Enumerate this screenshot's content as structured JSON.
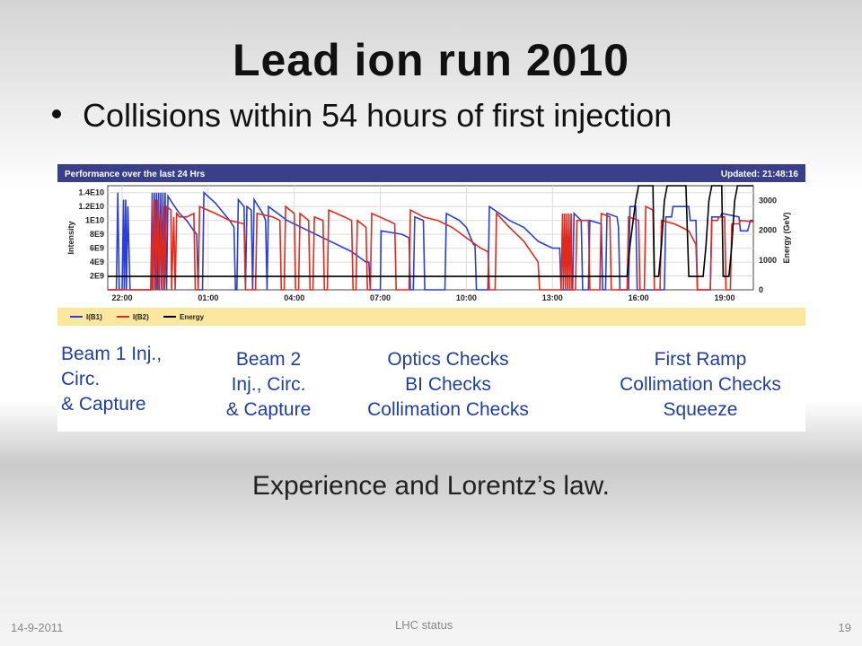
{
  "slide": {
    "title": "Lead ion run 2010",
    "bullet": "Collisions within 54 hours of first injection",
    "subtitle": "Experience and Lorentz’s law.",
    "footer_date": "14-9-2011",
    "footer_center": "LHC status",
    "page_number": "19"
  },
  "chart_data": {
    "type": "line",
    "title": "Performance over the last 24 Hrs",
    "updated": "Updated: 21:48:16",
    "ylabel": "Intensity",
    "y2label": "Energy (GeV)",
    "yticks": [
      "1.4E10",
      "1.2E10",
      "1E10",
      "8E9",
      "6E9",
      "4E9",
      "2E9"
    ],
    "y2ticks": [
      "3000",
      "2000",
      "1000",
      "0"
    ],
    "xticks": [
      "22:00",
      "01:00",
      "04:00",
      "07:00",
      "10:00",
      "13:00",
      "16:00",
      "19:00"
    ],
    "ylim": [
      0,
      15000000000
    ],
    "y2lim": [
      0,
      3500
    ],
    "series": [
      {
        "name": "I(B1)",
        "color": "#2b3fd6",
        "values": [
          [
            0,
            0
          ],
          [
            0.6,
            0
          ],
          [
            0.7,
            14000000000.0
          ],
          [
            0.8,
            0
          ],
          [
            1.0,
            0
          ],
          [
            1.1,
            13000000000.0
          ],
          [
            1.15,
            0
          ],
          [
            1.25,
            13000000000.0
          ],
          [
            1.3,
            0
          ],
          [
            1.4,
            12000000000.0
          ],
          [
            1.55,
            0
          ],
          [
            3.0,
            0
          ],
          [
            3.1,
            14000000000.0
          ],
          [
            3.15,
            0
          ],
          [
            3.25,
            14000000000.0
          ],
          [
            3.3,
            0
          ],
          [
            3.4,
            14000000000.0
          ],
          [
            3.45,
            0
          ],
          [
            3.55,
            14000000000.0
          ],
          [
            3.6,
            0
          ],
          [
            3.7,
            14000000000.0
          ],
          [
            3.75,
            0
          ],
          [
            3.85,
            14000000000.0
          ],
          [
            3.9,
            0
          ],
          [
            4.0,
            14000000000.0
          ],
          [
            4.1,
            0
          ],
          [
            4.2,
            13500000000.0
          ],
          [
            4.5,
            12500000000.0
          ],
          [
            5.0,
            11000000000.0
          ],
          [
            5.5,
            10000000000.0
          ],
          [
            6.0,
            8500000000.0
          ],
          [
            6.2,
            8000000000.0
          ],
          [
            6.3,
            0
          ],
          [
            6.6,
            0
          ],
          [
            6.7,
            14000000000.0
          ],
          [
            7.5,
            12500000000.0
          ],
          [
            8.5,
            10000000000.0
          ],
          [
            8.8,
            9000000000.0
          ],
          [
            8.9,
            0
          ],
          [
            9.0,
            0
          ],
          [
            9.1,
            13000000000.0
          ],
          [
            9.5,
            12000000000.0
          ],
          [
            9.6,
            0
          ],
          [
            9.7,
            12000000000.0
          ],
          [
            10.0,
            11500000000.0
          ],
          [
            10.1,
            0
          ],
          [
            10.2,
            13000000000.0
          ],
          [
            10.8,
            11000000000.0
          ],
          [
            11.0,
            10000000000.0
          ],
          [
            11.1,
            0
          ],
          [
            11.2,
            12000000000.0
          ],
          [
            12.5,
            10000000000.0
          ],
          [
            14.0,
            8500000000.0
          ],
          [
            16.0,
            6500000000.0
          ],
          [
            17.0,
            5500000000.0
          ],
          [
            18.0,
            4000000000.0
          ],
          [
            18.2,
            4000000000.0
          ],
          [
            18.3,
            0
          ],
          [
            19.0,
            0
          ],
          [
            19.05,
            8500000000.0
          ],
          [
            20.5,
            8000000000.0
          ],
          [
            21.0,
            7500000000.0
          ],
          [
            21.1,
            0
          ],
          [
            21.3,
            0
          ],
          [
            21.4,
            10500000000.0
          ],
          [
            22.0,
            10000000000.0
          ],
          [
            22.1,
            0
          ],
          [
            23.5,
            0
          ],
          [
            23.6,
            11000000000.0
          ],
          [
            24.5,
            10000000000.0
          ],
          [
            25.0,
            9000000000.0
          ],
          [
            25.5,
            6500000000.0
          ],
          [
            25.6,
            6500000000.0
          ],
          [
            25.7,
            0
          ],
          [
            26.5,
            0
          ],
          [
            26.6,
            12000000000.0
          ],
          [
            28.0,
            10000000000.0
          ],
          [
            29.0,
            9000000000.0
          ],
          [
            30.0,
            7000000000.0
          ],
          [
            31.0,
            6000000000.0
          ],
          [
            31.5,
            6000000000.0
          ],
          [
            31.6,
            0
          ],
          [
            32.4,
            0
          ],
          [
            32.5,
            11000000000.0
          ],
          [
            33.0,
            10000000000.0
          ],
          [
            33.1,
            0
          ],
          [
            33.5,
            0
          ],
          [
            33.6,
            10000000000.0
          ],
          [
            34.4,
            9500000000.0
          ],
          [
            34.5,
            0
          ],
          [
            34.7,
            0
          ],
          [
            34.8,
            11000000000.0
          ],
          [
            35.5,
            10500000000.0
          ],
          [
            35.6,
            9000000000.0
          ],
          [
            35.7,
            0
          ],
          [
            36.3,
            0
          ],
          [
            36.4,
            12000000000.0
          ],
          [
            36.8,
            12000000000.0
          ],
          [
            36.9,
            0
          ],
          [
            38.8,
            0
          ],
          [
            38.9,
            10500000000.0
          ],
          [
            39.3,
            10500000000.0
          ],
          [
            39.4,
            12000000000.0
          ],
          [
            40.5,
            12000000000.0
          ],
          [
            40.6,
            10000000000.0
          ],
          [
            41.0,
            10000000000.0
          ],
          [
            41.1,
            0
          ],
          [
            42.0,
            0
          ],
          [
            42.1,
            10500000000.0
          ],
          [
            42.7,
            10500000000.0
          ],
          [
            42.8,
            11000000000.0
          ],
          [
            44.0,
            10500000000.0
          ],
          [
            44.1,
            8500000000.0
          ],
          [
            44.6,
            8500000000.0
          ],
          [
            44.8,
            10000000000.0
          ],
          [
            45.0,
            10000000000.0
          ]
        ]
      },
      {
        "name": "I(B2)",
        "color": "#e02a1d",
        "values": [
          [
            0,
            0
          ],
          [
            3.05,
            0
          ],
          [
            3.1,
            13000000000.0
          ],
          [
            3.15,
            0
          ],
          [
            3.3,
            13000000000.0
          ],
          [
            3.35,
            0
          ],
          [
            3.5,
            13000000000.0
          ],
          [
            3.55,
            0
          ],
          [
            3.7,
            11000000000.0
          ],
          [
            3.75,
            0
          ],
          [
            3.9,
            12000000000.0
          ],
          [
            3.95,
            0
          ],
          [
            4.1,
            12000000000.0
          ],
          [
            4.4,
            11500000000.0
          ],
          [
            4.45,
            0
          ],
          [
            4.6,
            10500000000.0
          ],
          [
            4.7,
            0
          ],
          [
            4.8,
            11000000000.0
          ],
          [
            5.0,
            10500000000.0
          ],
          [
            5.5,
            10500000000.0
          ],
          [
            6.0,
            11000000000.0
          ],
          [
            6.1,
            0
          ],
          [
            6.3,
            0
          ],
          [
            6.4,
            12000000000.0
          ],
          [
            7.5,
            11000000000.0
          ],
          [
            8.5,
            10000000000.0
          ],
          [
            9.5,
            9500000000.0
          ],
          [
            9.6,
            0
          ],
          [
            10.3,
            0
          ],
          [
            10.4,
            11000000000.0
          ],
          [
            11.5,
            10500000000.0
          ],
          [
            12.0,
            10000000000.0
          ],
          [
            12.1,
            0
          ],
          [
            12.3,
            0
          ],
          [
            12.4,
            12000000000.0
          ],
          [
            13.0,
            11000000000.0
          ],
          [
            13.1,
            0
          ],
          [
            13.3,
            0
          ],
          [
            13.4,
            11000000000.0
          ],
          [
            14.0,
            10000000000.0
          ],
          [
            14.1,
            0
          ],
          [
            14.3,
            0
          ],
          [
            14.4,
            10500000000.0
          ],
          [
            15.0,
            10000000000.0
          ],
          [
            15.1,
            0
          ],
          [
            15.3,
            0
          ],
          [
            15.4,
            11500000000.0
          ],
          [
            16.5,
            10500000000.0
          ],
          [
            17.0,
            10000000000.0
          ],
          [
            17.1,
            0
          ],
          [
            17.3,
            0
          ],
          [
            17.4,
            10000000000.0
          ],
          [
            18.0,
            9000000000.0
          ],
          [
            18.1,
            0
          ],
          [
            18.3,
            0
          ],
          [
            18.4,
            11000000000.0
          ],
          [
            19.5,
            10000000000.0
          ],
          [
            20.0,
            9500000000.0
          ],
          [
            20.1,
            0
          ],
          [
            21.0,
            0
          ],
          [
            21.1,
            11500000000.0
          ],
          [
            22.0,
            10500000000.0
          ],
          [
            23.0,
            10000000000.0
          ],
          [
            24.0,
            9000000000.0
          ],
          [
            25.0,
            7500000000.0
          ],
          [
            26.0,
            6000000000.0
          ],
          [
            26.5,
            5500000000.0
          ],
          [
            26.6,
            0
          ],
          [
            27.0,
            0
          ],
          [
            27.1,
            11000000000.0
          ],
          [
            28.0,
            9000000000.0
          ],
          [
            29.0,
            7000000000.0
          ],
          [
            30.0,
            4000000000.0
          ],
          [
            30.1,
            0
          ],
          [
            31.6,
            0
          ],
          [
            31.7,
            11000000000.0
          ],
          [
            31.75,
            0
          ],
          [
            31.85,
            11000000000.0
          ],
          [
            31.9,
            0
          ],
          [
            32.0,
            11000000000.0
          ],
          [
            32.05,
            0
          ],
          [
            32.15,
            11000000000.0
          ],
          [
            32.2,
            0
          ],
          [
            32.3,
            11000000000.0
          ],
          [
            32.35,
            0
          ],
          [
            32.6,
            0
          ],
          [
            32.7,
            10000000000.0
          ],
          [
            33.5,
            10000000000.0
          ],
          [
            33.6,
            0
          ],
          [
            34.3,
            0
          ],
          [
            34.4,
            11000000000.0
          ],
          [
            35.0,
            10500000000.0
          ],
          [
            35.1,
            0
          ],
          [
            36.2,
            0
          ],
          [
            36.3,
            10500000000.0
          ],
          [
            37.0,
            10000000000.0
          ],
          [
            37.1,
            0
          ],
          [
            37.4,
            0
          ],
          [
            37.5,
            12000000000.0
          ],
          [
            38.0,
            11500000000.0
          ],
          [
            38.1,
            0
          ],
          [
            38.5,
            0
          ],
          [
            38.6,
            10000000000.0
          ],
          [
            39.5,
            9500000000.0
          ],
          [
            40.5,
            8500000000.0
          ],
          [
            41.0,
            6500000000.0
          ],
          [
            41.1,
            0
          ],
          [
            42.0,
            0
          ],
          [
            42.1,
            10000000000.0
          ],
          [
            42.5,
            10000000000.0
          ],
          [
            42.6,
            10500000000.0
          ],
          [
            43.0,
            10500000000.0
          ],
          [
            43.1,
            0
          ],
          [
            43.4,
            0
          ],
          [
            43.5,
            9500000000.0
          ],
          [
            44.0,
            9500000000.0
          ],
          [
            44.1,
            10000000000.0
          ],
          [
            45.0,
            9800000000.0
          ]
        ]
      },
      {
        "name": "Energy",
        "color": "#000000",
        "axis": "right",
        "values": [
          [
            0,
            450
          ],
          [
            36.2,
            450
          ],
          [
            36.4,
            1500
          ],
          [
            36.8,
            3000
          ],
          [
            37.0,
            3500
          ],
          [
            38.0,
            3500
          ],
          [
            38.1,
            450
          ],
          [
            38.4,
            450
          ],
          [
            38.6,
            1500
          ],
          [
            38.8,
            3000
          ],
          [
            39.0,
            3500
          ],
          [
            40.3,
            3500
          ],
          [
            40.5,
            450
          ],
          [
            41.5,
            450
          ],
          [
            41.7,
            1500
          ],
          [
            41.9,
            3000
          ],
          [
            42.1,
            3500
          ],
          [
            42.8,
            3500
          ],
          [
            42.9,
            450
          ],
          [
            43.3,
            450
          ],
          [
            43.5,
            1500
          ],
          [
            43.7,
            3000
          ],
          [
            43.9,
            3500
          ],
          [
            45.0,
            3500
          ]
        ]
      }
    ],
    "annotations": [
      "Beam 1 Inj.,\nCirc.\n& Capture",
      "Beam 2\nInj., Circ.\n& Capture",
      "Optics Checks\nBI Checks\nCollimation Checks",
      "First Ramp\nCollimation Checks\nSqueeze"
    ]
  }
}
